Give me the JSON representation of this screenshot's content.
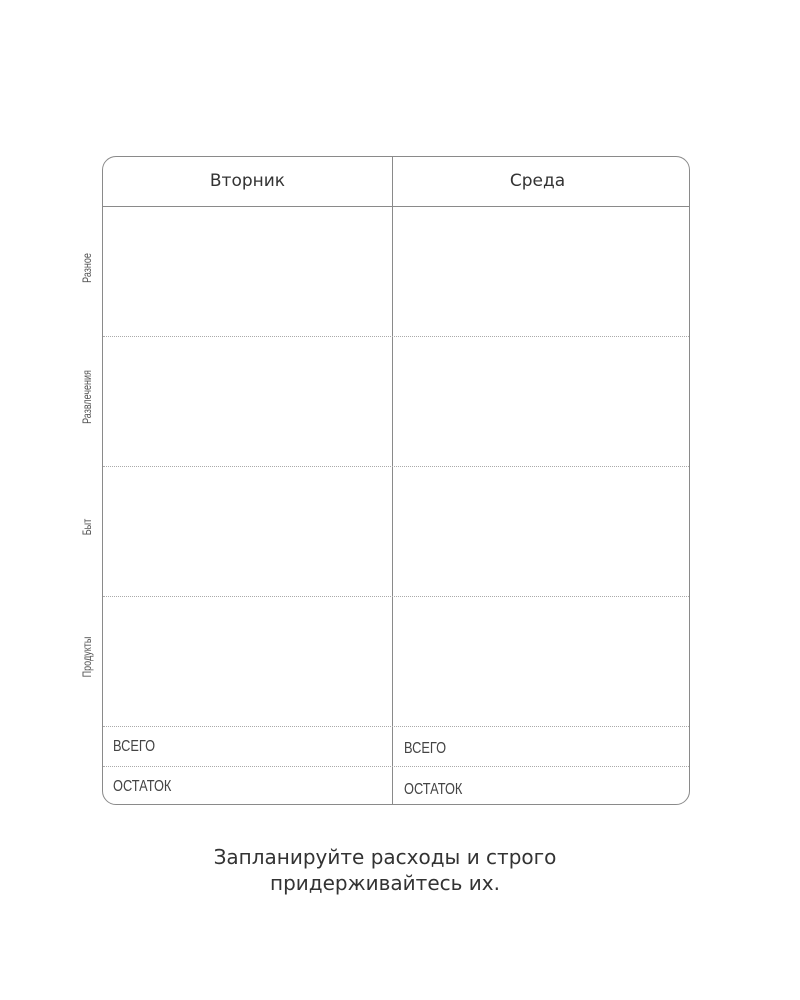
{
  "columns": [
    "Вторник",
    "Среда"
  ],
  "categories": [
    "Разное",
    "Развлечения",
    "Быт",
    "Продукты"
  ],
  "summary": {
    "total": "ВСЕГО",
    "remainder": "ОСТАТОК"
  },
  "caption": {
    "line1": "Запланируйте расходы и строго",
    "line2": "придерживайтесь их."
  }
}
